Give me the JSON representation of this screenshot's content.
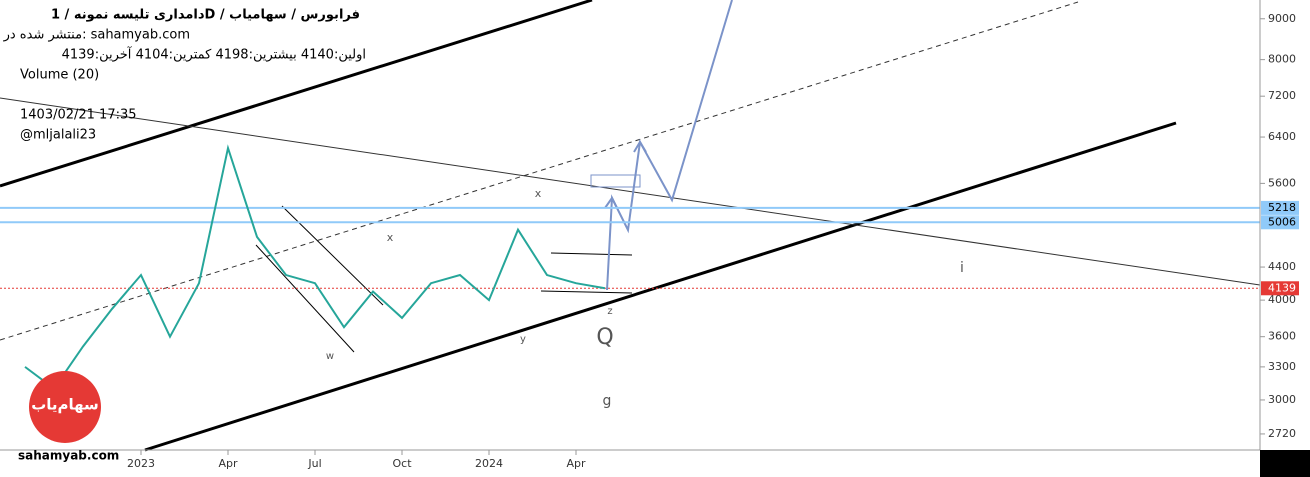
{
  "chart_data": {
    "type": "line",
    "header": [
      "دامداری تلیسه نمونه / 1D / فرابورس / سهامیاب",
      "منتشر شده در: sahamyab.com",
      "اولین:4140  بیشترین:4198  کمترین:4104  آخرین:4139",
      "Volume (20)",
      "1403/02/21 17:35",
      "@mljalali23"
    ],
    "watermark": "سهام‌یاب",
    "footer": "sahamyab.com",
    "x": [
      "2022-09",
      "2022-10",
      "2022-11",
      "2022-12",
      "2023-01",
      "2023-02",
      "2023-03",
      "2023-04",
      "2023-05",
      "2023-06",
      "2023-07",
      "2023-08",
      "2023-09",
      "2023-10",
      "2023-11",
      "2023-12",
      "2024-01",
      "2024-02",
      "2024-03",
      "2024-04",
      "2024-05"
    ],
    "series": [
      {
        "color": "#26a69a",
        "values": [
          3300,
          3100,
          3500,
          3900,
          4300,
          3600,
          4200,
          6200,
          4800,
          4300,
          4200,
          3700,
          4100,
          3800,
          4200,
          4300,
          4000,
          4900,
          4300,
          4200,
          4139
        ]
      }
    ],
    "xticks": [
      {
        "value": "2023-01",
        "label": "2023"
      },
      {
        "value": "2023-04",
        "label": "Apr"
      },
      {
        "value": "2023-07",
        "label": "Jul"
      },
      {
        "value": "2023-10",
        "label": "Oct"
      },
      {
        "value": "2024-01",
        "label": "2024"
      },
      {
        "value": "2024-04",
        "label": "Apr"
      }
    ],
    "ylim": [
      2597,
      9500
    ],
    "log_scale": true,
    "yticks": [
      9000,
      8000,
      7200,
      6400,
      5600,
      4400,
      4000,
      3600,
      3300,
      3000,
      2720
    ],
    "levels": [
      {
        "value": 5218,
        "color": "#90caf9"
      },
      {
        "value": 5006,
        "color": "#90caf9"
      },
      {
        "value": 4139,
        "color": "#e53935"
      }
    ],
    "annotations": [
      {
        "text": "x",
        "x": "2024-02"
      },
      {
        "text": "x",
        "x": "2023-09"
      },
      {
        "text": "w",
        "x": "2023-07"
      },
      {
        "text": "y",
        "x": "2024-02"
      },
      {
        "text": "z",
        "x": "2024-05"
      },
      {
        "text": "Q",
        "x": "2024-05"
      },
      {
        "text": "g",
        "x": "2024-05"
      },
      {
        "text": "i",
        "x": "2025-04"
      }
    ]
  }
}
